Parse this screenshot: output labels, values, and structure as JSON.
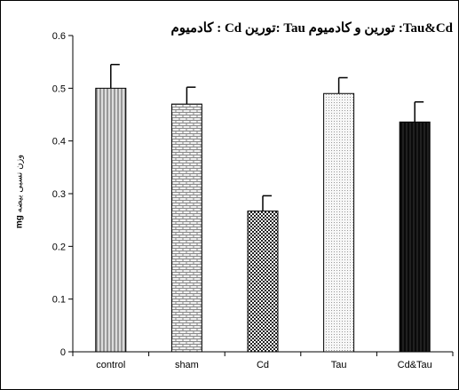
{
  "chart_data": {
    "type": "bar",
    "title": "کادمیوم :  Cd   تورین: Tau   تورین و کادمیوم :Tau&Cd",
    "ylabel_unit": "mg",
    "ylabel_text": "وزن نسبی بیضه",
    "categories": [
      "control",
      "sham",
      "Cd",
      "Tau",
      "Cd&Tau"
    ],
    "values": [
      0.5,
      0.47,
      0.267,
      0.49,
      0.436
    ],
    "errors": [
      0.045,
      0.032,
      0.029,
      0.03,
      0.038
    ],
    "ylim": [
      0,
      0.6
    ],
    "yticks": [
      "0",
      "0.1",
      "0.2",
      "0.3",
      "0.4",
      "0.5",
      "0.6"
    ],
    "grid": false,
    "bar_fills": [
      "#d8d8d8",
      "#e6e6e6",
      "#8c8c8c",
      "#f0f0f0",
      "#111111"
    ],
    "bar_patterns": [
      "vertical-lines",
      "brick",
      "checker",
      "dots",
      "vertical-lines"
    ]
  }
}
